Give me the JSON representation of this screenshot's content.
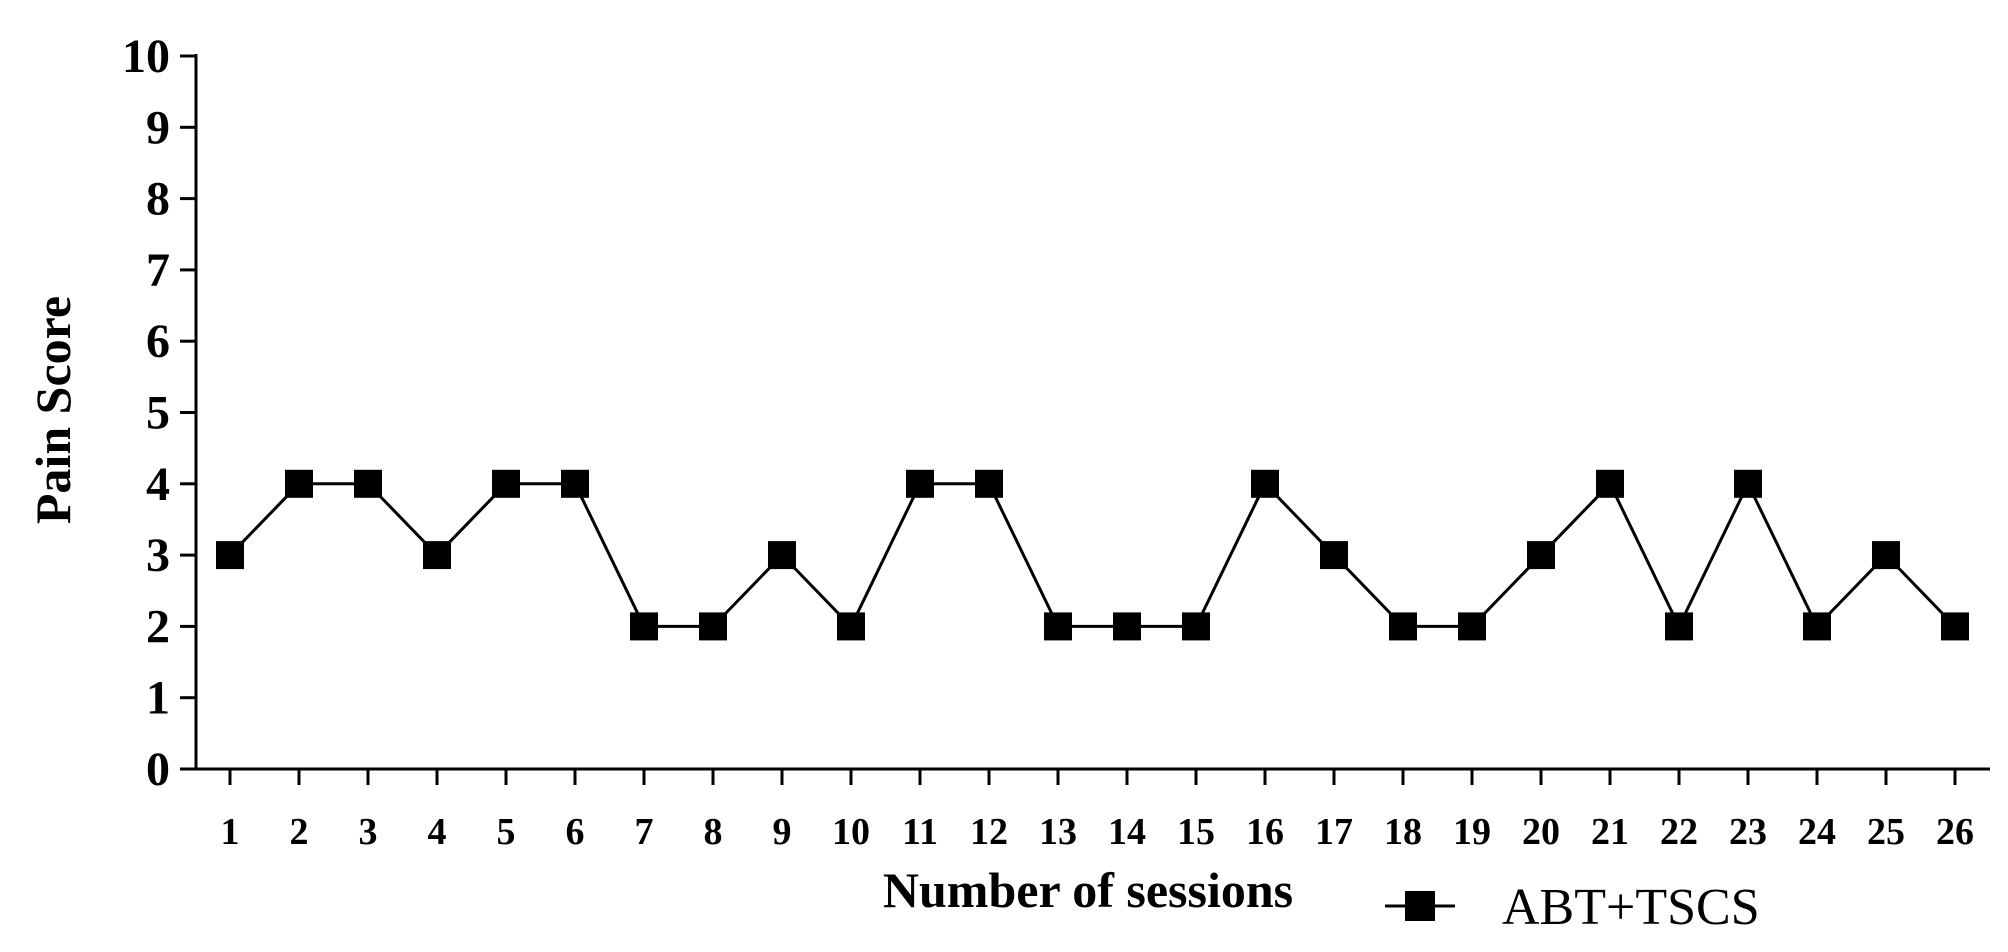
{
  "chart_data": {
    "type": "line",
    "title": "",
    "xlabel": "Number of sessions",
    "ylabel": "Pain Score",
    "x": [
      1,
      2,
      3,
      4,
      5,
      6,
      7,
      8,
      9,
      10,
      11,
      12,
      13,
      14,
      15,
      16,
      17,
      18,
      19,
      20,
      21,
      22,
      23,
      24,
      25,
      26
    ],
    "x_tick_labels": [
      "1",
      "2",
      "3",
      "4",
      "5",
      "6",
      "7",
      "8",
      "9",
      "10",
      "11",
      "12",
      "13",
      "14",
      "15",
      "16",
      "17",
      "18",
      "19",
      "20",
      "21",
      "22",
      "23",
      "24",
      "25",
      "26"
    ],
    "y_tick_labels": [
      "0",
      "1",
      "2",
      "3",
      "4",
      "5",
      "6",
      "7",
      "8",
      "9",
      "10"
    ],
    "ylim": [
      0,
      10
    ],
    "grid": false,
    "legend_position": "bottom-right",
    "series": [
      {
        "name": "ABT+TSCS",
        "marker": "square",
        "color": "#000000",
        "values": [
          3,
          4,
          4,
          3,
          4,
          4,
          2,
          2,
          3,
          2,
          4,
          4,
          2,
          2,
          2,
          4,
          3,
          2,
          2,
          3,
          4,
          2,
          4,
          2,
          3,
          2
        ]
      }
    ]
  }
}
